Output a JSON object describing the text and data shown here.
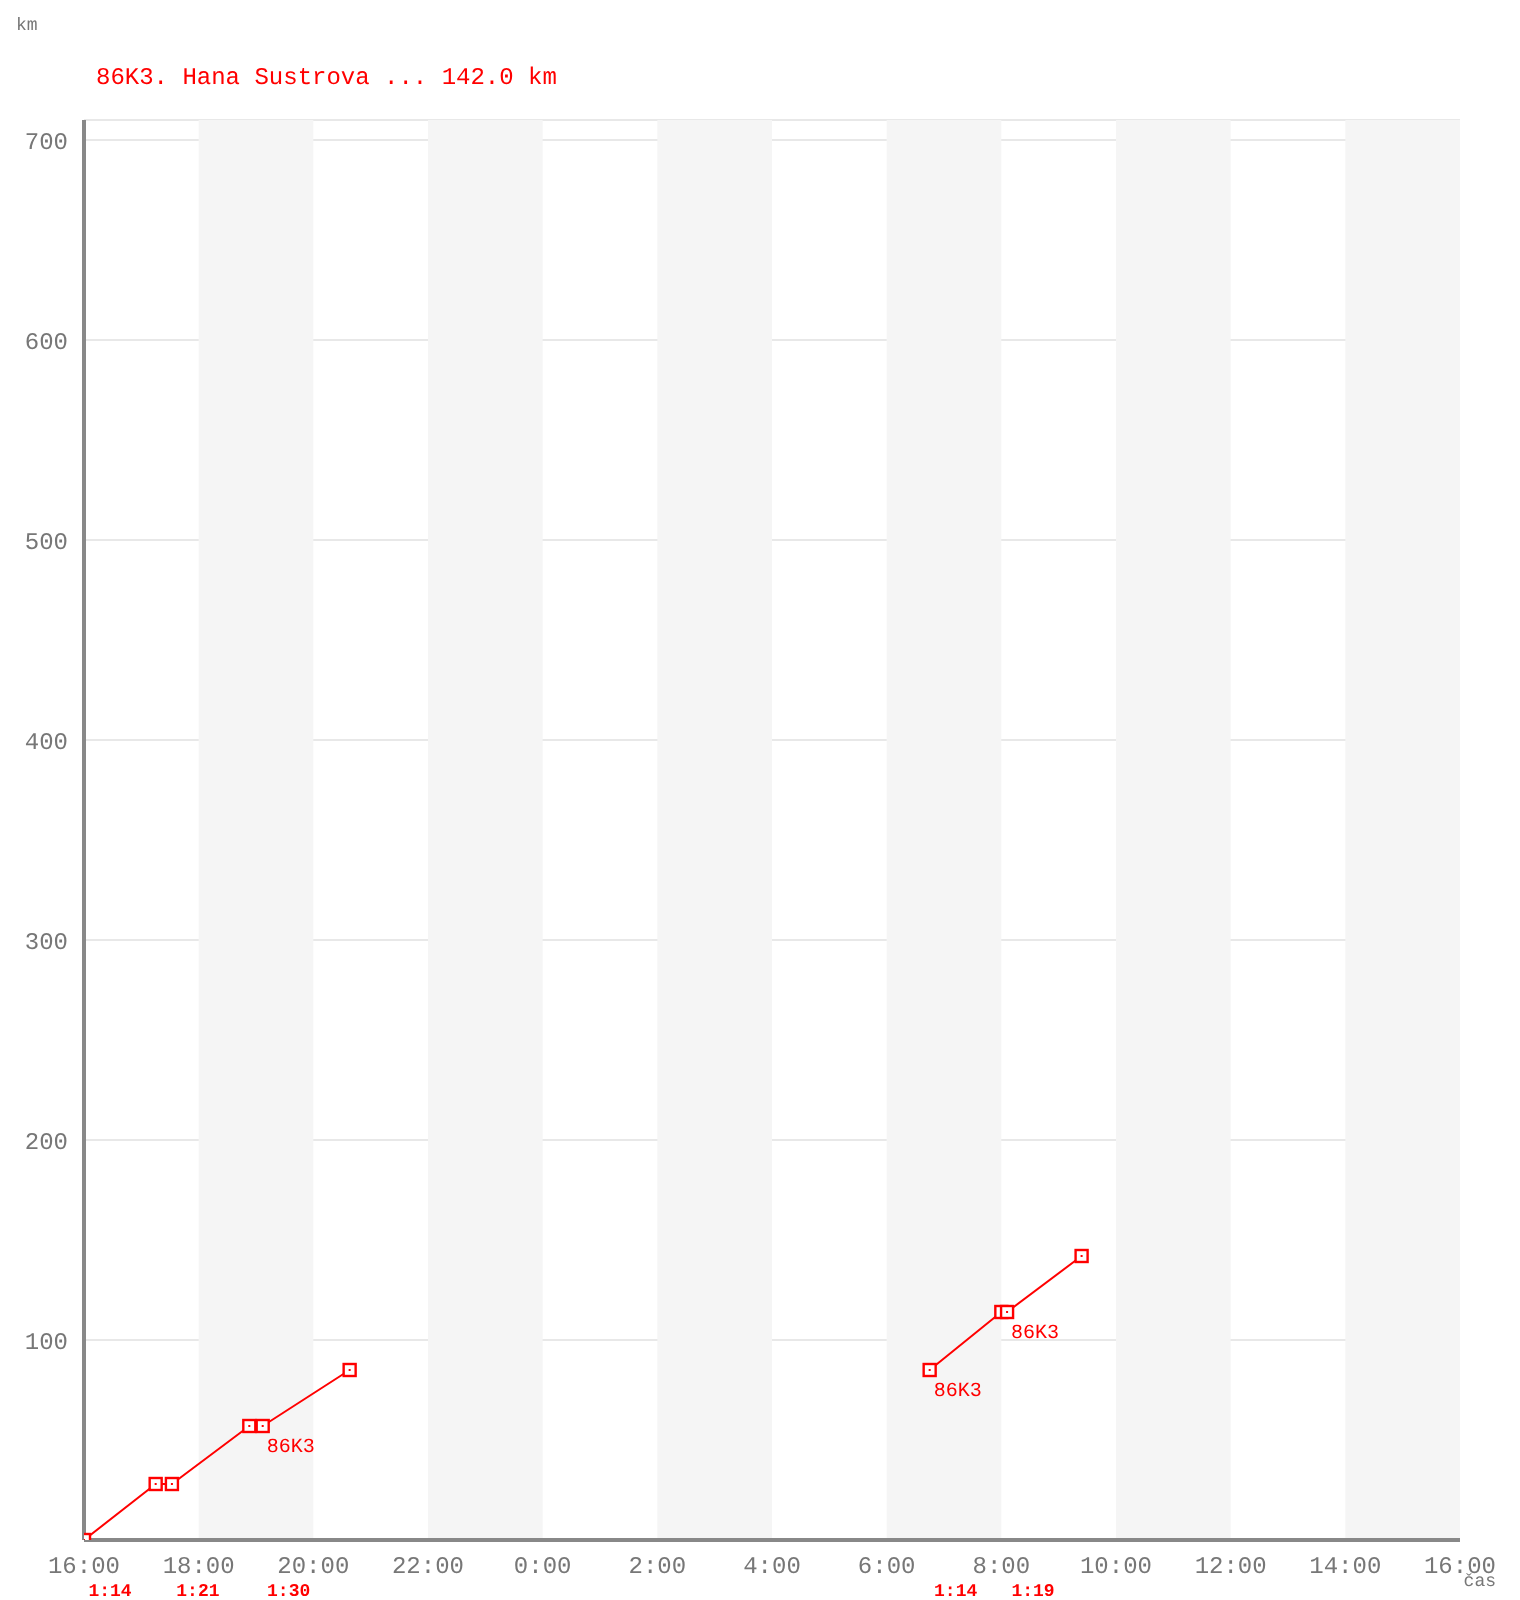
{
  "chart_data": {
    "type": "line",
    "title": "86K3. Hana Sustrova ... 142.0 km",
    "xlabel": "čas",
    "ylabel": "km",
    "series": [
      {
        "color": "#ff0000",
        "x": [
          "2000-01-01T16:00",
          "2000-01-01T17:15",
          "2000-01-01T17:32",
          "2000-01-01T18:53",
          "2000-01-01T19:07",
          "2000-01-01T20:38"
        ],
        "values": [
          0,
          28,
          28,
          57,
          57,
          85
        ]
      },
      {
        "color": "#ff0000",
        "x": [
          "2000-01-02T06:45",
          "2000-01-02T08:00",
          "2000-01-02T08:06",
          "2000-01-02T09:24"
        ],
        "values": [
          85,
          114,
          114,
          142
        ]
      }
    ],
    "xlim": [
      "2000-01-01T16:00",
      "2000-01-02T16:00"
    ],
    "xticks": [
      {
        "value": "2000-01-01T16:00",
        "label": "16:00"
      },
      {
        "value": "2000-01-01T18:00",
        "label": "18:00"
      },
      {
        "value": "2000-01-01T20:00",
        "label": "20:00"
      },
      {
        "value": "2000-01-01T22:00",
        "label": "22:00"
      },
      {
        "value": "2000-01-02T00:00",
        "label": "0:00"
      },
      {
        "value": "2000-01-02T02:00",
        "label": "2:00"
      },
      {
        "value": "2000-01-02T04:00",
        "label": "4:00"
      },
      {
        "value": "2000-01-02T06:00",
        "label": "6:00"
      },
      {
        "value": "2000-01-02T08:00",
        "label": "8:00"
      },
      {
        "value": "2000-01-02T10:00",
        "label": "10:00"
      },
      {
        "value": "2000-01-02T12:00",
        "label": "12:00"
      },
      {
        "value": "2000-01-02T14:00",
        "label": "14:00"
      },
      {
        "value": "2000-01-02T16:00",
        "label": "16:00"
      }
    ],
    "ylim": [
      0,
      710
    ],
    "yticks": [
      100,
      200,
      300,
      400,
      500,
      600,
      700
    ],
    "bands": [
      {
        "axis": "x",
        "from": "2000-01-01T18:00",
        "to": "2000-01-01T20:00",
        "color": "#f5f5f5"
      },
      {
        "axis": "x",
        "from": "2000-01-01T22:00",
        "to": "2000-01-02T00:00",
        "color": "#f5f5f5"
      },
      {
        "axis": "x",
        "from": "2000-01-02T02:00",
        "to": "2000-01-02T04:00",
        "color": "#f5f5f5"
      },
      {
        "axis": "x",
        "from": "2000-01-02T06:00",
        "to": "2000-01-02T08:00",
        "color": "#f5f5f5"
      },
      {
        "axis": "x",
        "from": "2000-01-02T10:00",
        "to": "2000-01-02T12:00",
        "color": "#f5f5f5"
      },
      {
        "axis": "x",
        "from": "2000-01-02T14:00",
        "to": "2000-01-02T16:00",
        "color": "#f5f5f5"
      }
    ],
    "annotations": [
      {
        "text": "86K3",
        "x": "2000-01-01T19:07",
        "y": 57
      },
      {
        "text": "86K3",
        "x": "2000-01-02T06:45",
        "y": 85
      },
      {
        "text": "86K3",
        "x": "2000-01-02T08:06",
        "y": 114
      },
      "1:14",
      "1:21",
      "1:30",
      "1:14",
      "1:19"
    ],
    "grid": "y",
    "marker": "square",
    "line_style": "solid"
  }
}
